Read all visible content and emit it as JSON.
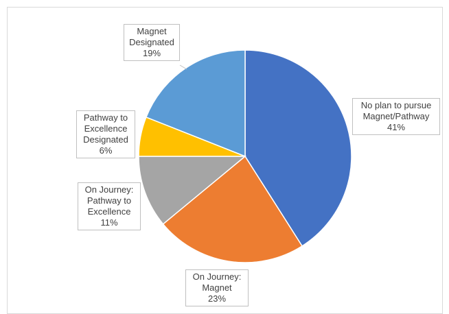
{
  "chart_data": {
    "type": "pie",
    "categories": [
      "No plan to pursue Magnet/Pathway",
      "On Journey: Magnet",
      "On Journey: Pathway to Excellence",
      "Pathway to Excellence Designated",
      "Magnet Designated"
    ],
    "values": [
      41,
      23,
      11,
      6,
      19
    ],
    "value_labels": [
      "41%",
      "23%",
      "11%",
      "6%",
      "19%"
    ],
    "colors": [
      "#4472c4",
      "#ed7d31",
      "#a5a5a5",
      "#ffc000",
      "#5b9bd5"
    ]
  }
}
